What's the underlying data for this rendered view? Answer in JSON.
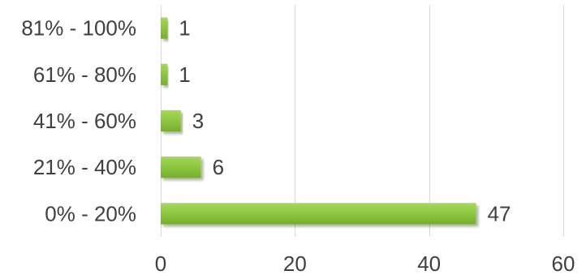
{
  "chart_data": {
    "type": "bar",
    "orientation": "horizontal",
    "categories": [
      "81% - 100%",
      "61% - 80%",
      "41% - 60%",
      "21% - 40%",
      "0% - 20%"
    ],
    "values": [
      1,
      1,
      3,
      6,
      47
    ],
    "xlim": [
      0,
      60
    ],
    "xticks": [
      0,
      20,
      40,
      60
    ],
    "grid": true,
    "bar_color": "#8cc63f",
    "bar_highlight": "#a6d85a",
    "bar_shadow": "#6f9e2e",
    "data_labels": true,
    "legend": "none",
    "title": "",
    "xlabel": "",
    "ylabel": ""
  }
}
